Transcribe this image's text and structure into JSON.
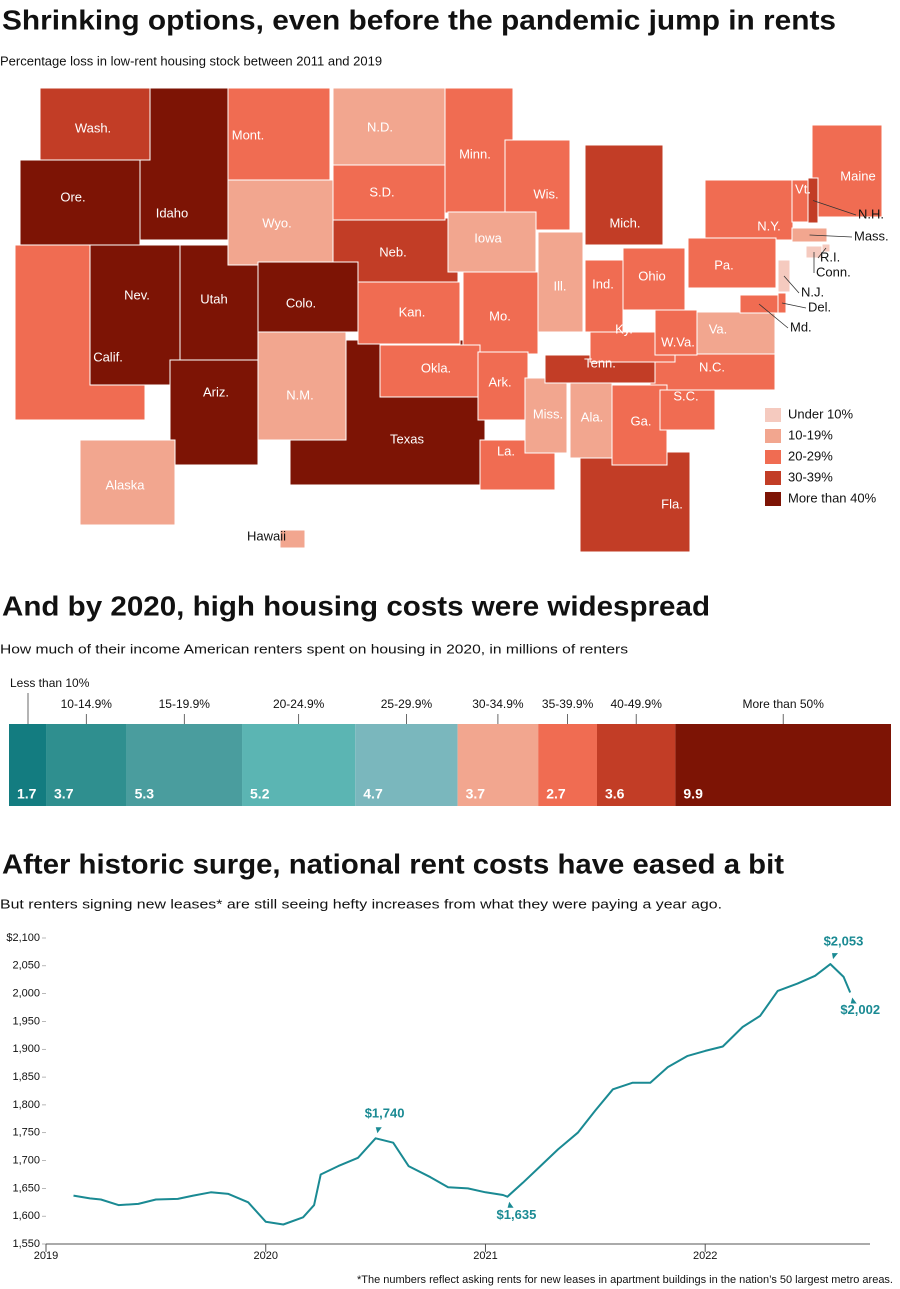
{
  "chart_data": [
    {
      "type": "choropleth",
      "title": "Shrinking options, even before the pandemic jump in rents",
      "subtitle": "Percentage loss in low-rent housing stock between 2011 and 2019",
      "bins": [
        {
          "label": "Under 10%",
          "color": "#f5cabf",
          "states": [
            "R.I.",
            "Conn.",
            "N.J."
          ]
        },
        {
          "label": "10-19%",
          "color": "#f2a68f",
          "states": [
            "N.D.",
            "Wyo.",
            "Iowa",
            "Ill.",
            "Va.",
            "Mass.",
            "N.M.",
            "Miss.",
            "Ala.",
            "Alaska",
            "Hawaii"
          ]
        },
        {
          "label": "20-29%",
          "color": "#f06c52",
          "states": [
            "Mont.",
            "S.D.",
            "Minn.",
            "Wis.",
            "Ind.",
            "Ohio",
            "Pa.",
            "N.Y.",
            "Vt.",
            "Maine",
            "Del.",
            "Md.",
            "W.Va.",
            "Ky.",
            "N.C.",
            "S.C.",
            "Ga.",
            "La.",
            "Ark.",
            "Mo.",
            "Kan.",
            "Okla.",
            "Calif."
          ]
        },
        {
          "label": "30-39%",
          "color": "#c23d26",
          "states": [
            "Wash.",
            "Mich.",
            "Neb.",
            "N.H.",
            "Tenn.",
            "Fla."
          ]
        },
        {
          "label": "More than 40%",
          "color": "#7d1405",
          "states": [
            "Ore.",
            "Idaho",
            "Nev.",
            "Utah",
            "Colo.",
            "Ariz.",
            "Texas"
          ]
        }
      ]
    },
    {
      "type": "stacked_bar",
      "title": "And by 2020, high housing costs were widespread",
      "subtitle": "How much of their income American renters spent on housing in 2020, in millions of renters",
      "categories": [
        "Less than 10%",
        "10-14.9%",
        "15-19.9%",
        "20-24.9%",
        "25-29.9%",
        "30-34.9%",
        "35-39.9%",
        "40-49.9%",
        "More than 50%"
      ],
      "values": [
        1.7,
        3.7,
        5.3,
        5.2,
        4.7,
        3.7,
        2.7,
        3.6,
        9.9
      ],
      "colors": [
        "#137c80",
        "#2f8f8f",
        "#4a9d9e",
        "#5bb5b3",
        "#7ab7bd",
        "#f2a68f",
        "#f06c52",
        "#c23d26",
        "#7d1405"
      ]
    },
    {
      "type": "line",
      "title": "After historic surge, national rent costs have eased a bit",
      "subtitle": "But renters signing new leases* are still seeing hefty increases from what they were paying a year ago.",
      "footnote": "*The numbers reflect asking rents for new leases in apartment buildings in the nation’s 50 largest metro areas.",
      "color": "#1a8a93",
      "x": [
        2019.125,
        2019.2,
        2019.25,
        2019.33,
        2019.42,
        2019.5,
        2019.6,
        2019.67,
        2019.75,
        2019.83,
        2019.92,
        2020.0,
        2020.08,
        2020.17,
        2020.22,
        2020.25,
        2020.33,
        2020.42,
        2020.5,
        2020.58,
        2020.65,
        2020.75,
        2020.83,
        2020.92,
        2021.0,
        2021.08,
        2021.1,
        2021.17,
        2021.25,
        2021.33,
        2021.42,
        2021.5,
        2021.58,
        2021.67,
        2021.75,
        2021.83,
        2021.92,
        2022.0,
        2022.08,
        2022.17,
        2022.25,
        2022.33,
        2022.42,
        2022.5,
        2022.57,
        2022.63,
        2022.66
      ],
      "values": [
        1637,
        1632,
        1630,
        1620,
        1622,
        1630,
        1631,
        1637,
        1643,
        1640,
        1625,
        1590,
        1585,
        1598,
        1620,
        1675,
        1690,
        1705,
        1740,
        1732,
        1690,
        1670,
        1652,
        1650,
        1643,
        1638,
        1635,
        1660,
        1690,
        1720,
        1750,
        1790,
        1828,
        1840,
        1840,
        1868,
        1888,
        1897,
        1905,
        1940,
        1960,
        2005,
        2018,
        2032,
        2053,
        2030,
        2002
      ],
      "annotations": [
        {
          "x": 2020.5,
          "y": 1740,
          "label": "$1,740"
        },
        {
          "x": 2021.1,
          "y": 1635,
          "label": "$1,635"
        },
        {
          "x": 2022.57,
          "y": 2053,
          "label": "$2,053"
        },
        {
          "x": 2022.66,
          "y": 2002,
          "label": "$2,002"
        }
      ],
      "xlim": [
        2019,
        2022.75
      ],
      "ylim": [
        1550,
        2100
      ],
      "xticks": [
        2019,
        2020,
        2021,
        2022
      ],
      "yticks": [
        {
          "value": 1550,
          "label": "1,550"
        },
        {
          "value": 1600,
          "label": "1,600"
        },
        {
          "value": 1650,
          "label": "1,650"
        },
        {
          "value": 1700,
          "label": "1,700"
        },
        {
          "value": 1750,
          "label": "1,750"
        },
        {
          "value": 1800,
          "label": "1,800"
        },
        {
          "value": 1850,
          "label": "1,850"
        },
        {
          "value": 1900,
          "label": "1,900"
        },
        {
          "value": 1950,
          "label": "1,950"
        },
        {
          "value": 2000,
          "label": "2,000"
        },
        {
          "value": 2050,
          "label": "2,050"
        },
        {
          "value": 2100,
          "label": "$2,100"
        }
      ]
    }
  ]
}
